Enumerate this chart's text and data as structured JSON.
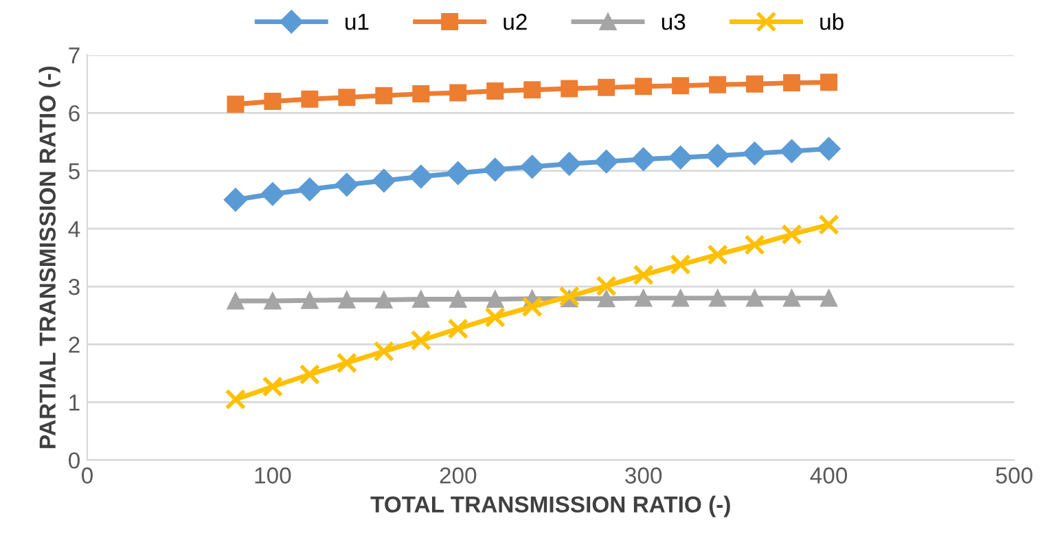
{
  "chart_data": {
    "type": "line",
    "xlabel": "TOTAL TRANSMISSION RATIO (-)",
    "ylabel": "PARTIAL TRANSMISSION RATIO (-)",
    "x": [
      80,
      100,
      120,
      140,
      160,
      180,
      200,
      220,
      240,
      260,
      280,
      300,
      320,
      340,
      360,
      380,
      400
    ],
    "series": [
      {
        "name": "u1",
        "color": "#5b9bd5",
        "marker": "diamond",
        "values": [
          4.5,
          4.6,
          4.68,
          4.76,
          4.83,
          4.9,
          4.96,
          5.02,
          5.07,
          5.12,
          5.16,
          5.2,
          5.23,
          5.26,
          5.3,
          5.34,
          5.38
        ]
      },
      {
        "name": "u2",
        "color": "#ed7d31",
        "marker": "square",
        "values": [
          6.15,
          6.2,
          6.24,
          6.27,
          6.3,
          6.33,
          6.35,
          6.38,
          6.4,
          6.42,
          6.44,
          6.46,
          6.47,
          6.49,
          6.5,
          6.52,
          6.53
        ]
      },
      {
        "name": "u3",
        "color": "#a5a5a5",
        "marker": "triangle",
        "values": [
          2.75,
          2.75,
          2.76,
          2.77,
          2.77,
          2.78,
          2.78,
          2.78,
          2.79,
          2.79,
          2.79,
          2.8,
          2.8,
          2.8,
          2.8,
          2.8,
          2.8
        ]
      },
      {
        "name": "ub",
        "color": "#ffc000",
        "marker": "cross",
        "values": [
          1.05,
          1.27,
          1.48,
          1.68,
          1.88,
          2.07,
          2.27,
          2.47,
          2.65,
          2.83,
          3.01,
          3.2,
          3.38,
          3.55,
          3.72,
          3.9,
          4.07
        ]
      }
    ],
    "xlim": [
      0,
      500
    ],
    "xticks": [
      0,
      100,
      200,
      300,
      400,
      500
    ],
    "ylim": [
      0,
      7
    ],
    "yticks": [
      0,
      1,
      2,
      3,
      4,
      5,
      6,
      7
    ],
    "grid": "y",
    "legend": "top",
    "line_style": "solid"
  }
}
